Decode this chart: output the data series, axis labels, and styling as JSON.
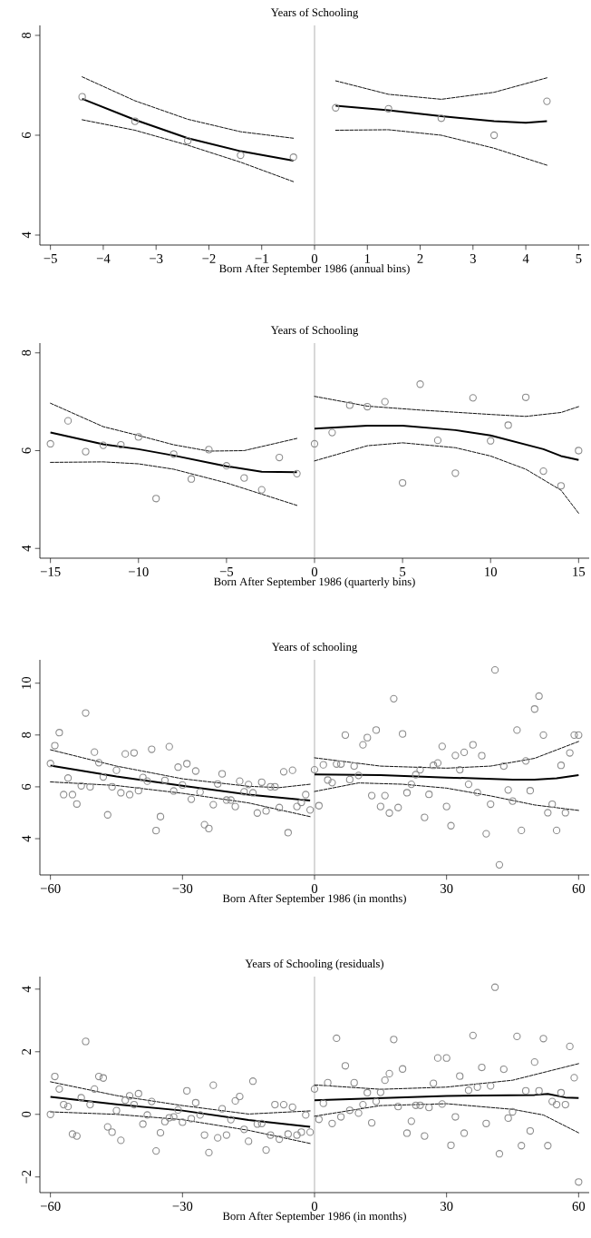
{
  "chart_data": [
    {
      "type": "scatter",
      "title": "Years of Schooling",
      "xlabel": "Born After September 1986 (annual bins)",
      "xlim": [
        -5.2,
        5.2
      ],
      "ylim": [
        3.8,
        8.2
      ],
      "xticks": [
        {
          "value": -5,
          "label": "−5"
        },
        {
          "value": -4,
          "label": "−4"
        },
        {
          "value": -3,
          "label": "−3"
        },
        {
          "value": -2,
          "label": "−2"
        },
        {
          "value": -1,
          "label": "−1"
        },
        0,
        1,
        2,
        3,
        4,
        5
      ],
      "yticks": [
        4,
        6,
        8
      ],
      "ref_lines": [
        {
          "axis": "x",
          "value": 0,
          "color": "#8c8c8c"
        }
      ],
      "series": [
        {
          "marker": "circle",
          "color": "#8c8c8c",
          "x": [
            -4.4,
            -3.4,
            -2.4,
            -1.4,
            -0.4,
            0.4,
            1.4,
            2.4,
            3.4,
            4.4
          ],
          "values": [
            6.77,
            6.28,
            5.89,
            5.6,
            5.56,
            6.55,
            6.53,
            6.34,
            6.0,
            6.68
          ]
        },
        {
          "type": "line",
          "line_style": "solid",
          "color": "#000000",
          "x": [
            -4.4,
            -3.4,
            -2.4,
            -1.4,
            -0.4
          ],
          "values": [
            6.73,
            6.31,
            5.94,
            5.68,
            5.49
          ]
        },
        {
          "type": "line",
          "line_style": "dashed",
          "color": "#000000",
          "x": [
            -4.4,
            -3.4,
            -2.4,
            -1.4,
            -0.4
          ],
          "values": [
            7.17,
            6.69,
            6.32,
            6.07,
            5.94
          ]
        },
        {
          "type": "line",
          "line_style": "dashed",
          "color": "#000000",
          "x": [
            -4.4,
            -3.4,
            -2.4,
            -1.4,
            -0.4
          ],
          "values": [
            6.31,
            6.1,
            5.8,
            5.46,
            5.07
          ]
        },
        {
          "type": "line",
          "line_style": "solid",
          "color": "#000000",
          "x": [
            0.4,
            1.4,
            2.4,
            3.4,
            4.0,
            4.4
          ],
          "values": [
            6.59,
            6.5,
            6.38,
            6.28,
            6.25,
            6.28
          ]
        },
        {
          "type": "line",
          "line_style": "dashed",
          "color": "#000000",
          "x": [
            0.4,
            1.4,
            2.4,
            3.4,
            4.4
          ],
          "values": [
            7.09,
            6.82,
            6.72,
            6.86,
            7.15
          ]
        },
        {
          "type": "line",
          "line_style": "dashed",
          "color": "#000000",
          "x": [
            0.4,
            1.4,
            2.4,
            3.4,
            4.4
          ],
          "values": [
            6.1,
            6.11,
            6.0,
            5.74,
            5.4
          ]
        }
      ]
    },
    {
      "type": "scatter",
      "title": "Years of Schooling",
      "xlabel": "Born After September 1986 (quarterly bins)",
      "xlim": [
        -15.6,
        15.6
      ],
      "ylim": [
        3.8,
        8.2
      ],
      "xticks": [
        {
          "value": -15,
          "label": "−15"
        },
        {
          "value": -10,
          "label": "−10"
        },
        {
          "value": -5,
          "label": "−5"
        },
        0,
        5,
        10,
        15
      ],
      "yticks": [
        4,
        6,
        8
      ],
      "ref_lines": [
        {
          "axis": "x",
          "value": 0,
          "color": "#8c8c8c"
        }
      ],
      "series": [
        {
          "marker": "circle",
          "color": "#8c8c8c",
          "x": [
            -15,
            -14,
            -13,
            -12,
            -11,
            -10,
            -9,
            -8,
            -7,
            -6,
            -5,
            -4,
            -3,
            -2,
            -1,
            0,
            1,
            2,
            3,
            4,
            5,
            6,
            7,
            8,
            9,
            10,
            11,
            12,
            13,
            14,
            15
          ],
          "values": [
            6.14,
            6.61,
            5.98,
            6.11,
            6.12,
            6.28,
            5.02,
            5.93,
            5.42,
            6.02,
            5.69,
            5.44,
            5.2,
            5.86,
            5.53,
            6.14,
            6.37,
            6.93,
            6.9,
            7.0,
            5.34,
            7.36,
            6.21,
            5.54,
            7.08,
            6.2,
            6.52,
            7.09,
            5.58,
            5.28,
            6.0
          ]
        },
        {
          "type": "line",
          "line_style": "solid",
          "color": "#000000",
          "x": [
            -15,
            -12,
            -10,
            -8,
            -5,
            -3,
            -1
          ],
          "values": [
            6.37,
            6.13,
            6.03,
            5.9,
            5.68,
            5.57,
            5.56
          ]
        },
        {
          "type": "line",
          "line_style": "dashed",
          "color": "#000000",
          "x": [
            -15,
            -12,
            -10,
            -8,
            -6,
            -4,
            -1
          ],
          "values": [
            6.97,
            6.49,
            6.31,
            6.12,
            5.99,
            6.0,
            6.25
          ]
        },
        {
          "type": "line",
          "line_style": "dashed",
          "color": "#000000",
          "x": [
            -15,
            -12,
            -10,
            -8,
            -5,
            -3,
            -1
          ],
          "values": [
            5.76,
            5.77,
            5.73,
            5.62,
            5.34,
            5.11,
            4.88
          ]
        },
        {
          "type": "line",
          "line_style": "solid",
          "color": "#000000",
          "x": [
            0,
            3,
            5,
            8,
            10,
            13,
            14,
            15
          ],
          "values": [
            6.45,
            6.51,
            6.51,
            6.42,
            6.31,
            6.03,
            5.89,
            5.81
          ]
        },
        {
          "type": "line",
          "line_style": "dashed",
          "color": "#000000",
          "x": [
            0,
            3,
            6,
            10,
            12,
            14,
            15
          ],
          "values": [
            7.11,
            6.91,
            6.83,
            6.74,
            6.7,
            6.78,
            6.9
          ]
        },
        {
          "type": "line",
          "line_style": "dashed",
          "color": "#000000",
          "x": [
            0,
            3,
            5,
            8,
            10,
            12,
            14,
            15
          ],
          "values": [
            5.79,
            6.1,
            6.16,
            6.06,
            5.89,
            5.62,
            5.19,
            4.72
          ]
        }
      ]
    },
    {
      "type": "scatter",
      "title": "Years of schooling",
      "xlabel": "Born After September 1986 (in months)",
      "xlim": [
        -62.4,
        62.4
      ],
      "ylim": [
        2.6,
        10.9
      ],
      "xticks": [
        {
          "value": -60,
          "label": "−60"
        },
        {
          "value": -30,
          "label": "−30"
        },
        0,
        30,
        60
      ],
      "yticks": [
        4,
        6,
        8,
        10
      ],
      "ref_lines": [
        {
          "axis": "x",
          "value": 0,
          "color": "#8c8c8c"
        }
      ],
      "series": [
        {
          "marker": "circle",
          "color": "#8c8c8c",
          "x": [
            -60,
            -59,
            -58,
            -57,
            -56,
            -55,
            -54,
            -53,
            -52,
            -51,
            -50,
            -49,
            -48,
            -47,
            -46,
            -45,
            -44,
            -43,
            -42,
            -41,
            -40,
            -39,
            -38,
            -37,
            -36,
            -35,
            -34,
            -33,
            -32,
            -31,
            -30,
            -29,
            -28,
            -27,
            -26,
            -25,
            -24,
            -23,
            -22,
            -21,
            -20,
            -19,
            -18,
            -17,
            -16,
            -15,
            -14,
            -13,
            -12,
            -11,
            -10,
            -9,
            -8,
            -7,
            -6,
            -5,
            -4,
            -3,
            -2,
            -1,
            0,
            1,
            2,
            3,
            4,
            5,
            6,
            7,
            8,
            9,
            10,
            11,
            12,
            13,
            14,
            15,
            16,
            17,
            18,
            19,
            20,
            21,
            22,
            23,
            24,
            25,
            26,
            27,
            28,
            29,
            30,
            31,
            32,
            33,
            34,
            35,
            36,
            37,
            38,
            39,
            40,
            41,
            42,
            43,
            44,
            45,
            46,
            47,
            48,
            49,
            50,
            51,
            52,
            53,
            54,
            55,
            56,
            57,
            58,
            59,
            60
          ],
          "values": [
            6.9,
            7.59,
            8.09,
            5.7,
            6.34,
            5.7,
            5.34,
            6.04,
            8.85,
            6.0,
            7.34,
            6.93,
            6.38,
            4.92,
            6.0,
            6.64,
            5.77,
            7.27,
            5.7,
            7.31,
            5.85,
            6.36,
            6.22,
            7.45,
            4.31,
            4.85,
            6.25,
            7.55,
            5.84,
            6.76,
            6.07,
            6.89,
            5.52,
            6.61,
            5.8,
            4.54,
            4.39,
            5.31,
            6.11,
            6.5,
            5.49,
            5.49,
            5.24,
            6.22,
            5.81,
            6.09,
            5.77,
            4.99,
            6.18,
            5.07,
            6.0,
            6.0,
            5.2,
            6.58,
            4.23,
            6.64,
            5.24,
            5.4,
            5.7,
            5.11,
            6.66,
            5.27,
            6.85,
            6.26,
            6.16,
            6.88,
            6.88,
            8.0,
            6.28,
            6.8,
            6.44,
            7.62,
            7.9,
            5.66,
            8.19,
            5.24,
            5.66,
            4.99,
            9.4,
            5.2,
            8.04,
            5.77,
            6.1,
            6.47,
            6.66,
            4.82,
            5.71,
            6.83,
            6.92,
            7.56,
            5.24,
            4.5,
            7.21,
            6.66,
            7.33,
            6.1,
            7.62,
            5.78,
            7.2,
            4.19,
            5.33,
            10.51,
            2.99,
            6.8,
            5.88,
            5.45,
            8.19,
            4.32,
            7.0,
            5.85,
            9.0,
            9.5,
            8.0,
            5.0,
            5.33,
            4.32,
            6.83,
            5.0,
            7.31,
            8.0,
            8.0
          ]
        },
        {
          "type": "line",
          "line_style": "solid",
          "color": "#000000",
          "x": [
            -60,
            -45,
            -30,
            -15,
            -1
          ],
          "values": [
            6.82,
            6.4,
            6.04,
            5.7,
            5.47
          ]
        },
        {
          "type": "line",
          "line_style": "dashed",
          "color": "#000000",
          "x": [
            -60,
            -45,
            -30,
            -15,
            -8,
            -1
          ],
          "values": [
            7.43,
            6.8,
            6.31,
            6.02,
            5.97,
            6.1
          ]
        },
        {
          "type": "line",
          "line_style": "dashed",
          "color": "#000000",
          "x": [
            -60,
            -45,
            -30,
            -15,
            -1
          ],
          "values": [
            6.19,
            6.05,
            5.75,
            5.38,
            4.85
          ]
        },
        {
          "type": "line",
          "line_style": "solid",
          "color": "#000000",
          "x": [
            0,
            15,
            30,
            45,
            50,
            55,
            60
          ],
          "values": [
            6.48,
            6.45,
            6.36,
            6.28,
            6.28,
            6.33,
            6.45
          ]
        },
        {
          "type": "line",
          "line_style": "dashed",
          "color": "#000000",
          "x": [
            0,
            15,
            30,
            40,
            50,
            60
          ],
          "values": [
            7.12,
            6.8,
            6.72,
            6.8,
            7.1,
            7.75
          ]
        },
        {
          "type": "line",
          "line_style": "dashed",
          "color": "#000000",
          "x": [
            0,
            10,
            20,
            30,
            40,
            50,
            60
          ],
          "values": [
            5.82,
            6.15,
            6.1,
            5.95,
            5.65,
            5.3,
            5.09
          ]
        }
      ]
    },
    {
      "type": "scatter",
      "title": "Years of Schooling (residuals)",
      "xlabel": "Born After September 1986 (in months)",
      "xlim": [
        -62.4,
        62.4
      ],
      "ylim": [
        -2.5,
        4.4
      ],
      "xticks": [
        {
          "value": -60,
          "label": "−60"
        },
        {
          "value": -30,
          "label": "−30"
        },
        0,
        30,
        60
      ],
      "yticks": [
        {
          "value": -2,
          "label": "−2"
        },
        0,
        2,
        4
      ],
      "ref_lines": [
        {
          "axis": "x",
          "value": 0,
          "color": "#8c8c8c"
        }
      ],
      "series": [
        {
          "marker": "circle",
          "color": "#8c8c8c",
          "x": [
            -60,
            -59,
            -58,
            -57,
            -56,
            -55,
            -54,
            -53,
            -52,
            -51,
            -50,
            -49,
            -48,
            -47,
            -46,
            -45,
            -44,
            -43,
            -42,
            -41,
            -40,
            -39,
            -38,
            -37,
            -36,
            -35,
            -34,
            -33,
            -32,
            -31,
            -30,
            -29,
            -28,
            -27,
            -26,
            -25,
            -24,
            -23,
            -22,
            -21,
            -20,
            -19,
            -18,
            -17,
            -16,
            -15,
            -14,
            -13,
            -12,
            -11,
            -10,
            -9,
            -8,
            -7,
            -6,
            -5,
            -4,
            -3,
            -2,
            -1,
            0,
            1,
            2,
            3,
            4,
            5,
            6,
            7,
            8,
            9,
            10,
            11,
            12,
            13,
            14,
            15,
            16,
            17,
            18,
            19,
            20,
            21,
            22,
            23,
            24,
            25,
            26,
            27,
            28,
            29,
            30,
            31,
            32,
            33,
            34,
            35,
            36,
            37,
            38,
            39,
            40,
            41,
            42,
            43,
            44,
            45,
            46,
            47,
            48,
            49,
            50,
            51,
            52,
            53,
            54,
            55,
            56,
            57,
            58,
            59,
            60
          ],
          "values": [
            0.0,
            1.21,
            0.81,
            0.31,
            0.25,
            -0.63,
            -0.69,
            0.53,
            2.33,
            0.31,
            0.81,
            1.21,
            1.16,
            -0.4,
            -0.57,
            0.12,
            -0.83,
            0.45,
            0.59,
            0.31,
            0.66,
            -0.31,
            -0.02,
            0.41,
            -1.17,
            -0.59,
            -0.23,
            -0.11,
            -0.08,
            0.14,
            -0.25,
            0.75,
            -0.14,
            0.37,
            -0.02,
            -0.66,
            -1.22,
            0.93,
            -0.75,
            0.18,
            -0.66,
            -0.17,
            0.43,
            0.57,
            -0.48,
            -0.86,
            1.06,
            -0.31,
            -0.29,
            -1.14,
            -0.66,
            0.31,
            -0.79,
            0.31,
            -0.63,
            0.23,
            -0.66,
            -0.57,
            -0.02,
            -0.57,
            0.81,
            -0.16,
            0.35,
            1.01,
            -0.29,
            2.43,
            -0.08,
            1.55,
            0.13,
            1.01,
            0.04,
            0.31,
            0.69,
            -0.27,
            0.41,
            0.7,
            1.09,
            1.3,
            2.39,
            0.25,
            1.45,
            -0.6,
            -0.22,
            0.29,
            0.29,
            -0.69,
            0.22,
            0.99,
            1.8,
            0.33,
            1.8,
            -0.99,
            -0.08,
            1.22,
            -0.6,
            0.77,
            2.52,
            0.87,
            1.5,
            -0.29,
            0.91,
            4.06,
            -1.26,
            1.44,
            -0.12,
            0.08,
            2.49,
            -1.0,
            0.75,
            -0.53,
            1.67,
            0.75,
            2.42,
            -1.0,
            0.41,
            0.31,
            0.69,
            0.31,
            2.17,
            1.17,
            -2.16
          ]
        },
        {
          "type": "line",
          "line_style": "solid",
          "color": "#000000",
          "x": [
            -60,
            -45,
            -30,
            -15,
            -1
          ],
          "values": [
            0.56,
            0.32,
            0.12,
            -0.18,
            -0.4
          ]
        },
        {
          "type": "line",
          "line_style": "dashed",
          "color": "#000000",
          "x": [
            -60,
            -45,
            -30,
            -15,
            -1
          ],
          "values": [
            1.04,
            0.6,
            0.28,
            0.01,
            0.11
          ]
        },
        {
          "type": "line",
          "line_style": "dashed",
          "color": "#000000",
          "x": [
            -60,
            -45,
            -30,
            -15,
            -1
          ],
          "values": [
            0.08,
            0.0,
            -0.17,
            -0.51,
            -0.93
          ]
        },
        {
          "type": "line",
          "line_style": "solid",
          "color": "#000000",
          "x": [
            0,
            30,
            50,
            53,
            57,
            60
          ],
          "values": [
            0.45,
            0.59,
            0.62,
            0.65,
            0.54,
            0.52
          ]
        },
        {
          "type": "line",
          "line_style": "dashed",
          "color": "#000000",
          "x": [
            0,
            15,
            30,
            45,
            60
          ],
          "values": [
            0.94,
            0.8,
            0.87,
            1.09,
            1.62
          ]
        },
        {
          "type": "line",
          "line_style": "dashed",
          "color": "#000000",
          "x": [
            0,
            15,
            30,
            45,
            52,
            60
          ],
          "values": [
            -0.06,
            0.28,
            0.34,
            0.16,
            -0.02,
            -0.59
          ]
        }
      ]
    }
  ]
}
